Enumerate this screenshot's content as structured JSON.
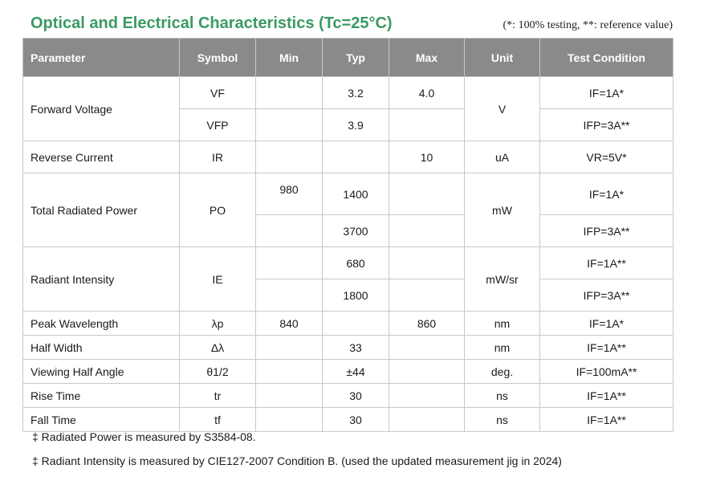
{
  "header": {
    "title": "Optical and Electrical Characteristics (Tc=25°C)",
    "note": "(*: 100% testing, **: reference value)"
  },
  "table": {
    "columns": [
      "Parameter",
      "Symbol",
      "Min",
      "Typ",
      "Max",
      "Unit",
      "Test Condition"
    ],
    "forward_voltage": {
      "parameter": "Forward Voltage",
      "unit": "V",
      "rows": [
        {
          "symbol": "VF",
          "min": "",
          "typ": "3.2",
          "max": "4.0",
          "cond": "IF=1A*"
        },
        {
          "symbol": "VFP",
          "min": "",
          "typ": "3.9",
          "max": "",
          "cond": "IFP=3A**"
        }
      ]
    },
    "reverse_current": {
      "parameter": "Reverse Current",
      "symbol": "IR",
      "min": "",
      "typ": "",
      "max": "10",
      "unit": "uA",
      "cond": "VR=5V*"
    },
    "total_radiated_power": {
      "parameter": "Total Radiated Power",
      "symbol": "PO",
      "min": "980",
      "max": "",
      "unit": "mW",
      "rows": [
        {
          "typ": "1400",
          "cond": "IF=1A*"
        },
        {
          "typ": "3700",
          "cond": "IFP=3A**"
        }
      ]
    },
    "radiant_intensity": {
      "parameter": "Radiant Intensity",
      "symbol": "IE",
      "min": "",
      "max": "",
      "unit": "mW/sr",
      "rows": [
        {
          "typ": "680",
          "cond": "IF=1A**"
        },
        {
          "typ": "1800",
          "cond": "IFP=3A**"
        }
      ]
    },
    "simple_rows": [
      {
        "parameter": "Peak Wavelength",
        "symbol": "λp",
        "min": "840",
        "typ": "",
        "max": "860",
        "unit": "nm",
        "cond": "IF=1A*"
      },
      {
        "parameter": "Half Width",
        "symbol": "Δλ",
        "min": "",
        "typ": "33",
        "max": "",
        "unit": "nm",
        "cond": "IF=1A**"
      },
      {
        "parameter": "Viewing Half Angle",
        "symbol": "θ1/2",
        "min": "",
        "typ": "±44",
        "max": "",
        "unit": "deg.",
        "cond": "IF=100mA**"
      },
      {
        "parameter": "Rise Time",
        "symbol": "tr",
        "min": "",
        "typ": "30",
        "max": "",
        "unit": "ns",
        "cond": "IF=1A**"
      },
      {
        "parameter": "Fall Time",
        "symbol": "tf",
        "min": "",
        "typ": "30",
        "max": "",
        "unit": "ns",
        "cond": "IF=1A**"
      }
    ]
  },
  "footnotes": [
    "‡ Radiated Power is measured by S3584-08.",
    "‡ Radiant Intensity is measured by CIE127-2007 Condition B. (used the updated measurement jig in 2024)"
  ]
}
